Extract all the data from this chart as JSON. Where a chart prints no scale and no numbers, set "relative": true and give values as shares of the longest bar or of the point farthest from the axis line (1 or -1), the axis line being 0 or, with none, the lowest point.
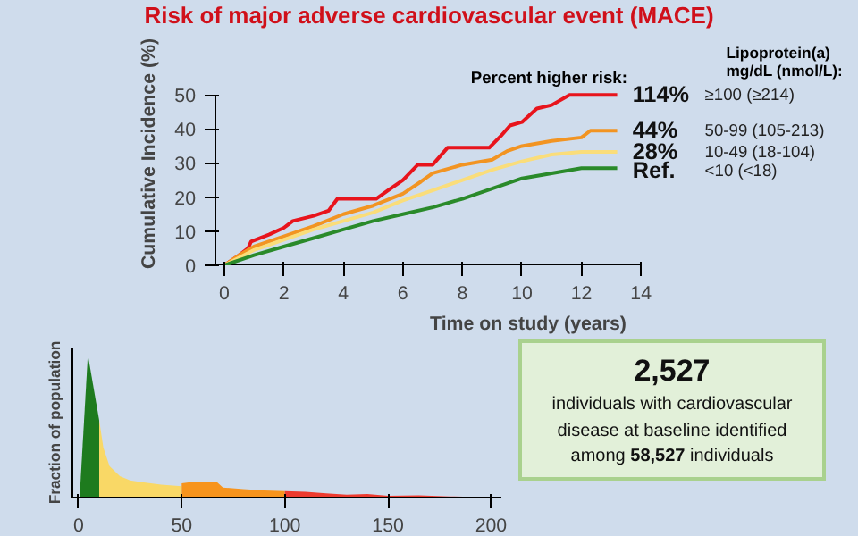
{
  "chart_data": [
    {
      "type": "line",
      "title": "Risk of major adverse cardiovascular event (MACE)",
      "xlabel": "Time on study (years)",
      "ylabel": "Cumulative Incidence (%)",
      "legend_title": "Percent higher risk:",
      "annotations": [
        "Lipoprotein(a) mg/dL (nmol/L):",
        "≥100 (≥214)",
        "50-99 (105-213)",
        "10-49 (18-104)",
        "<10 (<18)"
      ],
      "xlim": [
        -0.3,
        14
      ],
      "ylim": [
        0,
        50
      ],
      "xticks": [
        0,
        2,
        4,
        6,
        8,
        10,
        12,
        14
      ],
      "yticks": [
        0,
        10,
        20,
        30,
        40,
        50
      ],
      "grid": false,
      "legend": false,
      "series": [
        {
          "name": "114%",
          "color": "#e8141c",
          "x": [
            0,
            0.5,
            0.8,
            0.9,
            1.5,
            2,
            2.3,
            3,
            3.5,
            3.8,
            5.1,
            5.5,
            6,
            6.5,
            7,
            7.5,
            8.9,
            9.3,
            9.6,
            10,
            10.5,
            11,
            11.6,
            13.2
          ],
          "values": [
            0,
            3,
            5,
            7,
            9,
            11,
            13,
            14.5,
            16,
            19.5,
            19.5,
            22,
            25,
            29.5,
            29.5,
            34.5,
            34.5,
            38,
            41,
            42,
            46,
            47,
            50,
            50
          ]
        },
        {
          "name": "44%",
          "color": "#f29422",
          "x": [
            0,
            0.5,
            1,
            2,
            3,
            4,
            5,
            6,
            6.6,
            7,
            8,
            9,
            9.5,
            10,
            11,
            12,
            12.3,
            13.2
          ],
          "values": [
            0,
            3,
            5.5,
            8.5,
            11.5,
            15,
            17.5,
            21,
            24.5,
            27,
            29.5,
            31,
            33.5,
            35,
            36.5,
            37.5,
            39.5,
            39.5
          ]
        },
        {
          "name": "28%",
          "color": "#fadd7a",
          "x": [
            0,
            1,
            2,
            3,
            4,
            5,
            6,
            7,
            8,
            9,
            10,
            11,
            12,
            13.2
          ],
          "values": [
            0,
            4.5,
            7.5,
            10.5,
            13,
            15.5,
            19,
            22,
            25,
            28,
            30.5,
            32.5,
            33.3,
            33.3
          ]
        },
        {
          "name": "Ref.",
          "color": "#2a8a2a",
          "x": [
            0,
            1,
            2,
            3,
            4,
            5,
            6,
            7,
            8,
            9,
            10,
            11,
            12,
            13.2
          ],
          "values": [
            0,
            3,
            5.5,
            8,
            10.5,
            13,
            15,
            17,
            19.5,
            22.5,
            25.5,
            27,
            28.5,
            28.5
          ]
        }
      ]
    },
    {
      "type": "area",
      "relative": true,
      "ylabel": "Fraction of population",
      "xlim": [
        -3,
        205
      ],
      "xticks": [
        0,
        50,
        100,
        150,
        200
      ],
      "grid": false,
      "series": [
        {
          "color": "#1e7b1e",
          "x": [
            0.5,
            4.5,
            10
          ],
          "values": [
            0,
            1,
            0.54
          ]
        },
        {
          "color": "#f9d866",
          "x": [
            10,
            12,
            15,
            20,
            25,
            30,
            40,
            50
          ],
          "values": [
            0.54,
            0.35,
            0.22,
            0.15,
            0.12,
            0.11,
            0.09,
            0.08
          ]
        },
        {
          "color": "#f7941d",
          "x": [
            50,
            55,
            62,
            67,
            70,
            80,
            90,
            100
          ],
          "values": [
            0.1,
            0.11,
            0.11,
            0.11,
            0.07,
            0.06,
            0.05,
            0.045
          ]
        },
        {
          "color": "#ee3b2f",
          "x": [
            100,
            110,
            120,
            130,
            140,
            150,
            165,
            180,
            200
          ],
          "values": [
            0.045,
            0.04,
            0.03,
            0.02,
            0.025,
            0.012,
            0.015,
            0.008,
            0.002
          ]
        }
      ]
    },
    {
      "type": "other",
      "annotations": [
        "2,527",
        "individuals with cardiovascular disease at baseline identified among",
        "58,527",
        "individuals"
      ]
    }
  ]
}
